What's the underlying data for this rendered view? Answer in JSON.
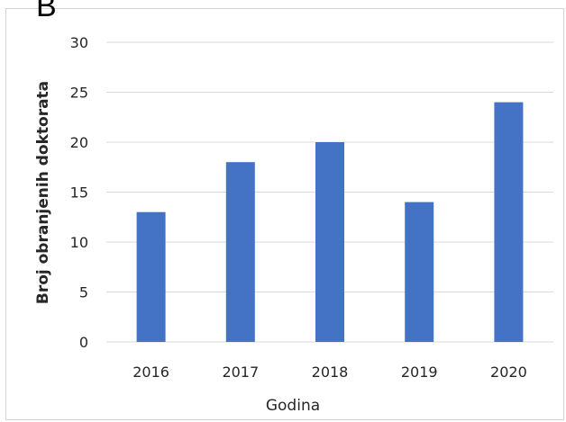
{
  "panel_label": "B",
  "chart_data": {
    "type": "bar",
    "categories": [
      "2016",
      "2017",
      "2018",
      "2019",
      "2020"
    ],
    "values": [
      13,
      18,
      20,
      14,
      24
    ],
    "xlabel": "Godina",
    "ylabel": "Broj obranjenih  doktorata",
    "ylim": [
      0,
      30
    ],
    "yticks": [
      0,
      5,
      10,
      15,
      20,
      25,
      30
    ],
    "grid": true,
    "legend": "none",
    "bar_color": "#4472C4",
    "grid_color": "#d9d9d9"
  }
}
